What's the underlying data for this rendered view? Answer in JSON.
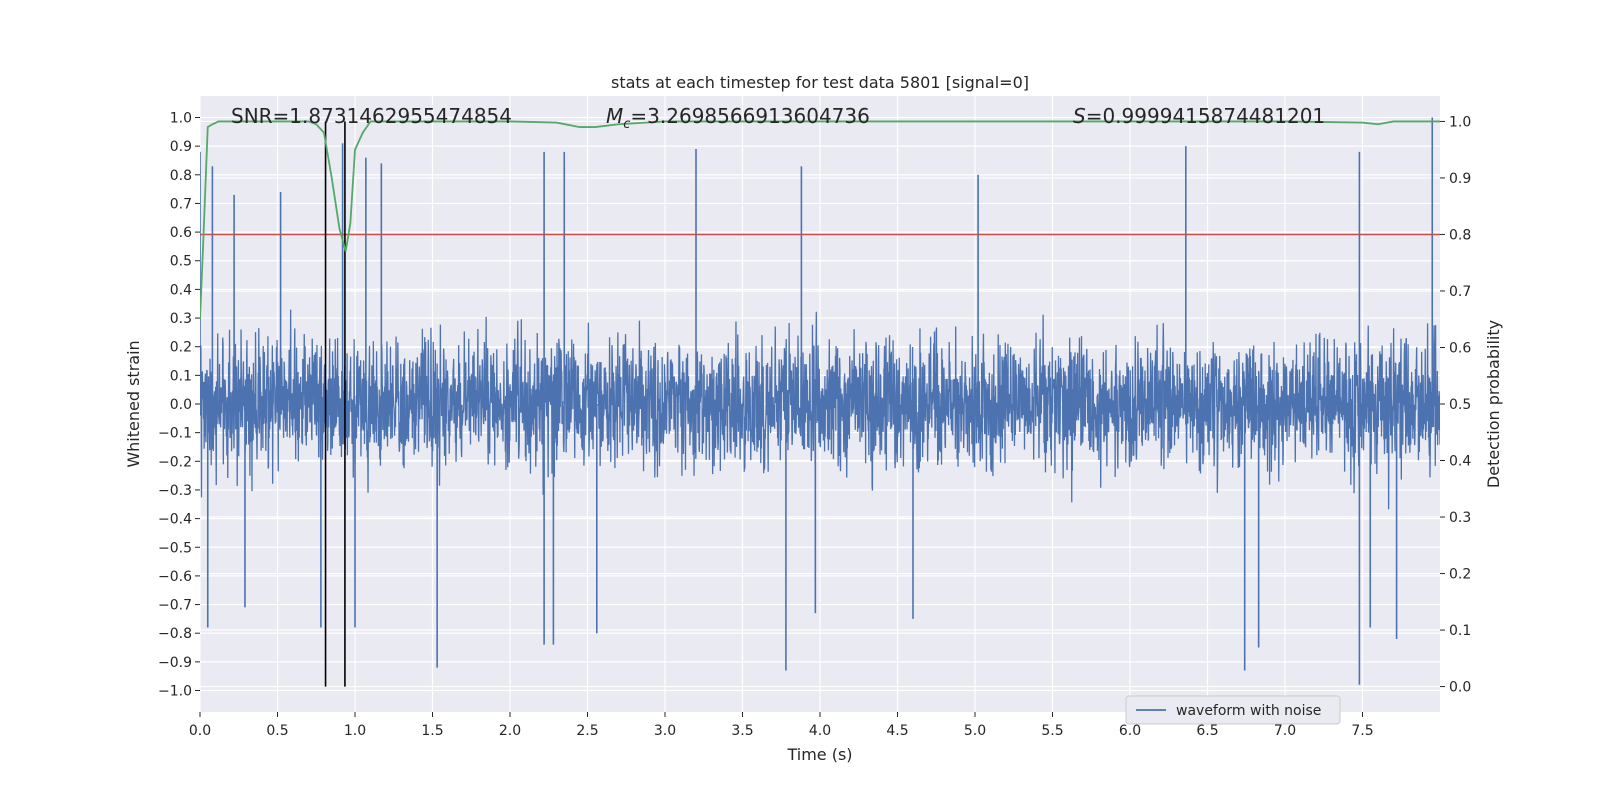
{
  "chart_data": {
    "type": "line",
    "title": "stats at each timestep for test data 5801 [signal=0]",
    "xlabel": "Time (s)",
    "ylabel_left": "Whitened strain",
    "ylabel_right": "Detection probability",
    "xlim": [
      0.0,
      8.0
    ],
    "ylim_left": [
      -1.075,
      1.075
    ],
    "ylim_right": [
      -0.045,
      1.045
    ],
    "x_ticks": [
      "0.0",
      "0.5",
      "1.0",
      "1.5",
      "2.0",
      "2.5",
      "3.0",
      "3.5",
      "4.0",
      "4.5",
      "5.0",
      "5.5",
      "6.0",
      "6.5",
      "7.0",
      "7.5"
    ],
    "y_left_ticks": [
      "1.0",
      "0.9",
      "0.8",
      "0.7",
      "0.6",
      "0.5",
      "0.4",
      "0.3",
      "0.2",
      "0.1",
      "0.0",
      "−0.1",
      "−0.2",
      "−0.3",
      "−0.4",
      "−0.5",
      "−0.6",
      "−0.7",
      "−0.8",
      "−0.9",
      "−1.0"
    ],
    "y_right_ticks": [
      "1.0",
      "0.9",
      "0.8",
      "0.7",
      "0.6",
      "0.5",
      "0.4",
      "0.3",
      "0.2",
      "0.1",
      "0.0"
    ],
    "grid": true,
    "annotations": {
      "snr": "SNR=1.8731462955474854",
      "mc_symbol": "M",
      "mc_sub": "c",
      "mc_value": "=3.2698566913604736",
      "s_symbol": "S",
      "s_value": "=0.9999415874481201"
    },
    "threshold": 0.8,
    "vlines_x": [
      0.81,
      0.935
    ],
    "legend": {
      "label": "waveform with noise",
      "position": "lower-right"
    },
    "series": [
      {
        "name": "waveform with noise",
        "axis": "left",
        "color": "#4c72b0",
        "amplitude_typical": 0.27,
        "peak_events": [
          {
            "x": 0.0,
            "y": 0.88
          },
          {
            "x": 0.08,
            "y": 0.83
          },
          {
            "x": 0.22,
            "y": 0.73
          },
          {
            "x": 0.52,
            "y": 0.74
          },
          {
            "x": 0.92,
            "y": 0.91
          },
          {
            "x": 1.07,
            "y": 0.86
          },
          {
            "x": 1.17,
            "y": 0.84
          },
          {
            "x": 2.22,
            "y": 0.88
          },
          {
            "x": 2.35,
            "y": 0.88
          },
          {
            "x": 3.2,
            "y": 0.89
          },
          {
            "x": 3.88,
            "y": 0.83
          },
          {
            "x": 5.02,
            "y": 0.8
          },
          {
            "x": 6.36,
            "y": 0.9
          },
          {
            "x": 7.48,
            "y": 0.88
          },
          {
            "x": 7.95,
            "y": 1.0
          },
          {
            "x": 0.05,
            "y": -0.78
          },
          {
            "x": 0.29,
            "y": -0.71
          },
          {
            "x": 0.78,
            "y": -0.78
          },
          {
            "x": 1.0,
            "y": -0.78
          },
          {
            "x": 1.53,
            "y": -0.92
          },
          {
            "x": 2.22,
            "y": -0.84
          },
          {
            "x": 2.28,
            "y": -0.84
          },
          {
            "x": 2.56,
            "y": -0.8
          },
          {
            "x": 3.78,
            "y": -0.93
          },
          {
            "x": 3.97,
            "y": -0.73
          },
          {
            "x": 4.6,
            "y": -0.75
          },
          {
            "x": 6.74,
            "y": -0.93
          },
          {
            "x": 6.83,
            "y": -0.85
          },
          {
            "x": 7.48,
            "y": -0.98
          },
          {
            "x": 7.55,
            "y": -0.78
          },
          {
            "x": 7.72,
            "y": -0.82
          }
        ]
      },
      {
        "name": "",
        "axis": "right",
        "color": "#55a868",
        "x": [
          0.0,
          0.02,
          0.05,
          0.08,
          0.12,
          0.3,
          0.55,
          0.7,
          0.75,
          0.8,
          0.85,
          0.9,
          0.94,
          0.97,
          1.0,
          1.05,
          1.1,
          1.3,
          2.0,
          2.3,
          2.45,
          2.55,
          2.7,
          3.0,
          4.0,
          5.0,
          6.0,
          7.0,
          7.5,
          7.6,
          7.7,
          8.0
        ],
        "y": [
          0.65,
          0.78,
          0.99,
          0.995,
          1.0,
          1.0,
          1.0,
          1.0,
          0.995,
          0.98,
          0.9,
          0.81,
          0.77,
          0.82,
          0.95,
          0.98,
          1.0,
          1.0,
          1.0,
          0.998,
          0.99,
          0.99,
          0.995,
          1.0,
          1.0,
          1.0,
          1.0,
          1.0,
          0.998,
          0.995,
          1.0,
          1.0
        ]
      }
    ]
  }
}
